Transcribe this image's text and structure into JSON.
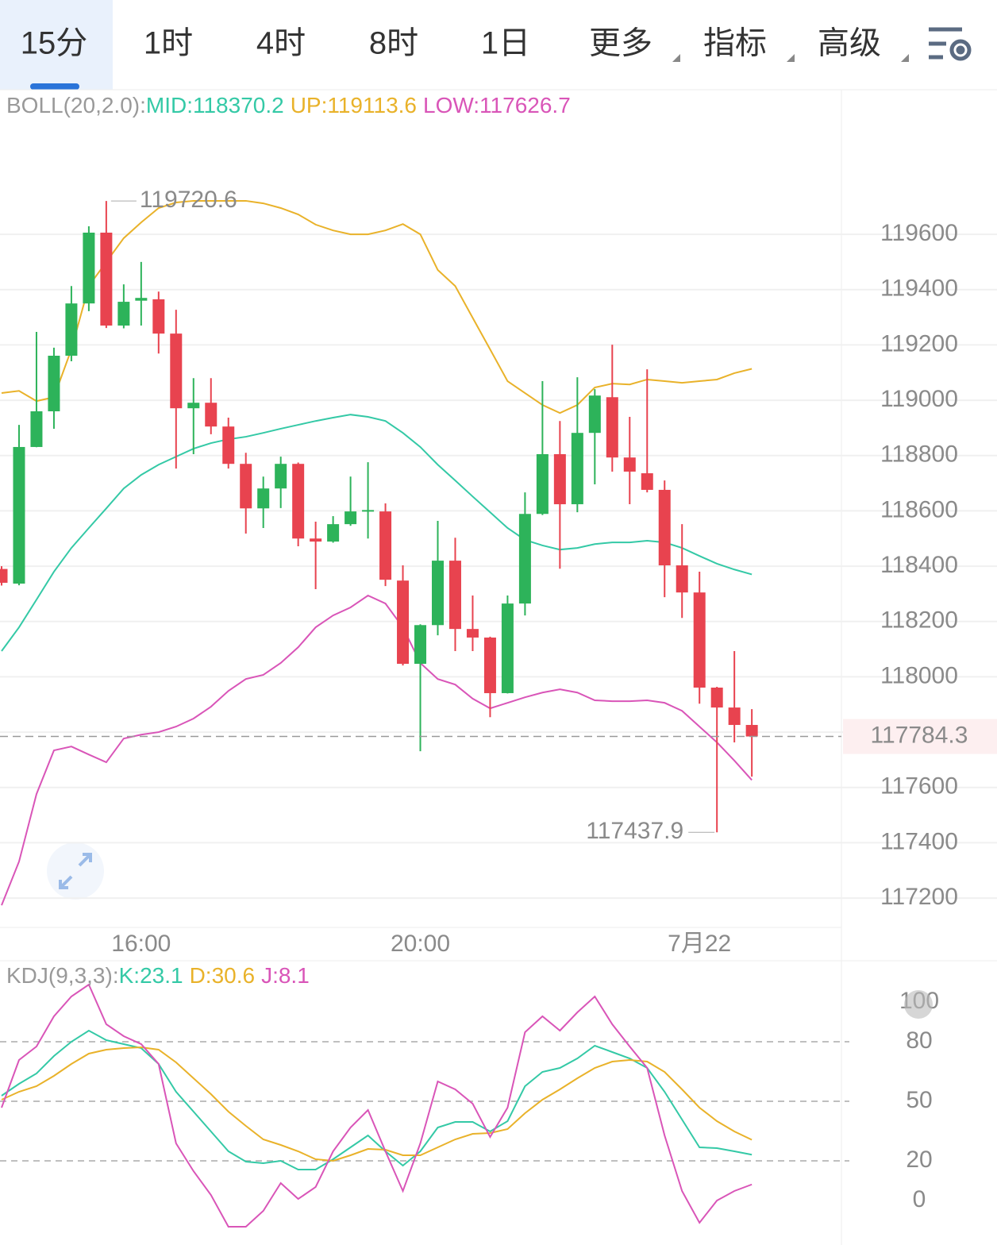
{
  "tabs": [
    {
      "label": "15分",
      "active": true
    },
    {
      "label": "1时"
    },
    {
      "label": "4时"
    },
    {
      "label": "8时"
    },
    {
      "label": "1日"
    },
    {
      "label": "更多",
      "dropdown": true
    },
    {
      "label": "指标",
      "dropdown": true
    },
    {
      "label": "高级",
      "dropdown": true
    }
  ],
  "chart_data": [
    {
      "type": "candlestick",
      "indicator": "BOLL(20,2.0):",
      "categories": [
        null,
        null,
        null,
        null,
        null,
        null,
        null,
        null,
        "16:00",
        null,
        null,
        null,
        null,
        null,
        null,
        null,
        null,
        null,
        null,
        null,
        null,
        null,
        null,
        null,
        "20:00",
        null,
        null,
        null,
        null,
        null,
        null,
        null,
        null,
        null,
        null,
        null,
        null,
        null,
        null,
        null,
        "7月22",
        null,
        null,
        null
      ],
      "open": [
        118390,
        118337,
        118831,
        118960,
        119161,
        119350,
        119606,
        119270,
        119360,
        119365,
        119241,
        118971,
        118991,
        118905,
        118770,
        118609,
        118681,
        118770,
        118500,
        118489,
        118552,
        118598,
        118598,
        118348,
        118047,
        118187,
        118420,
        118173,
        118142,
        117941,
        118265,
        118589,
        118805,
        118624,
        118882,
        119011,
        118793,
        118736,
        118676,
        118403,
        118305,
        117961,
        117889,
        117826
      ],
      "high": [
        118400,
        118911,
        119247,
        119190,
        119413,
        119629,
        119720.6,
        119419,
        119500,
        119393,
        119327,
        119080,
        119080,
        118937,
        118810,
        118724,
        118796,
        118775,
        118561,
        118581,
        118724,
        118776,
        118627,
        118403,
        118190,
        118564,
        118503,
        118294,
        118145,
        118294,
        118667,
        119069,
        118925,
        119083,
        119040,
        119201,
        118940,
        119112,
        118710,
        118552,
        118380,
        117964,
        118093,
        117883
      ],
      "low": [
        118330,
        118331,
        118830,
        118897,
        119141,
        119322,
        119261,
        119260,
        119270,
        119169,
        118753,
        118805,
        118877,
        118753,
        118518,
        118538,
        118610,
        118472,
        118317,
        118485,
        118546,
        118500,
        118328,
        118041,
        117731,
        118150,
        118093,
        118093,
        117854,
        117940,
        118222,
        118585,
        118391,
        118595,
        118696,
        118742,
        118624,
        118667,
        118288,
        118213,
        117903,
        117437.9,
        117763,
        117639
      ],
      "close": [
        118340,
        118831,
        118960,
        119161,
        119350,
        119606,
        119270,
        119356,
        119370,
        119241,
        118971,
        118991,
        118905,
        118770,
        118609,
        118681,
        118770,
        118500,
        118489,
        118552,
        118598,
        118603,
        118351,
        118047,
        118187,
        118420,
        118173,
        118142,
        117941,
        118265,
        118589,
        118805,
        118624,
        118882,
        119017,
        118793,
        118742,
        118676,
        118403,
        118305,
        117961,
        117889,
        117826,
        117784.3
      ],
      "up_color": "#2db35a",
      "down_color": "#e8434f",
      "series": [
        {
          "name": "MID:118370.2",
          "color": "#34c9a6",
          "values": [
            118093,
            118179,
            118279,
            118380,
            118466,
            118538,
            118609,
            118681,
            118730,
            118767,
            118796,
            118825,
            118845,
            118859,
            118868,
            118882,
            118897,
            118911,
            118925,
            118937,
            118948,
            118940,
            118925,
            118882,
            118831,
            118767,
            118710,
            118652,
            118595,
            118538,
            118495,
            118475,
            118460,
            118466,
            118480,
            118486,
            118486,
            118492,
            118486,
            118466,
            118437,
            118409,
            118388,
            118370.2
          ]
        },
        {
          "name": "UP:119113.6",
          "color": "#e9b22a",
          "values": [
            119026,
            119034,
            118997,
            119011,
            119184,
            119413,
            119500,
            119586,
            119643,
            119695,
            119715,
            119721,
            119721,
            119721,
            119721,
            119712,
            119695,
            119672,
            119635,
            119614,
            119600,
            119600,
            119614,
            119637,
            119600,
            119471,
            119413,
            119298,
            119184,
            119069,
            119026,
            118983,
            118954,
            118983,
            119046,
            119060,
            119057,
            119075,
            119069,
            119063,
            119069,
            119075,
            119098,
            119113.6
          ]
        },
        {
          "name": "LOW:117626.7",
          "color": "#d955b8",
          "values": [
            117174,
            117332,
            117576,
            117734,
            117748,
            117719,
            117691,
            117777,
            117791,
            117800,
            117820,
            117849,
            117892,
            117949,
            117992,
            118007,
            118050,
            118107,
            118179,
            118222,
            118251,
            118294,
            118265,
            118179,
            118050,
            117992,
            117972,
            117921,
            117886,
            117906,
            117926,
            117943,
            117955,
            117943,
            117915,
            117912,
            117912,
            117915,
            117906,
            117877,
            117820,
            117763,
            117697,
            117626.7
          ]
        }
      ],
      "ylim": [
        117094,
        120117
      ],
      "yticks": [
        117200,
        117400,
        117600,
        117800,
        118000,
        118200,
        118400,
        118600,
        118800,
        119000,
        119200,
        119400,
        119600
      ],
      "grid": true,
      "annotations": [
        {
          "label": "119720.6",
          "value": 119720.6,
          "x": 6
        },
        {
          "label": "117437.9",
          "value": 117437.9,
          "x": 41
        }
      ],
      "last_price": {
        "value": 117784.3,
        "label": "117784.3"
      }
    },
    {
      "type": "line",
      "indicator": "KDJ(9,3,3):",
      "series": [
        {
          "name": "K:23.1",
          "color": "#34c9a6",
          "values": [
            52.8,
            58.8,
            64,
            72.8,
            80,
            85.6,
            80.8,
            78.8,
            76.8,
            68.8,
            54.8,
            44.8,
            34.8,
            24.8,
            19.6,
            18.8,
            20,
            15.6,
            15.6,
            20.8,
            26.8,
            32.8,
            24.8,
            17.6,
            24.8,
            36.8,
            39.6,
            39.6,
            34.8,
            40,
            57.6,
            64.8,
            66.8,
            71.6,
            78,
            74.8,
            71.6,
            66.8,
            54.8,
            40.8,
            26.8,
            26.4,
            24.8,
            23.1
          ]
        },
        {
          "name": "D:30.6",
          "color": "#e9b22a",
          "values": [
            50.8,
            54.8,
            57.6,
            62.8,
            68.8,
            74,
            76,
            76.8,
            77.2,
            76,
            69.6,
            61.6,
            53.6,
            44.8,
            37.6,
            30.8,
            28,
            24.8,
            20.8,
            20,
            22.8,
            26,
            25.6,
            22.8,
            22.8,
            26.8,
            30.8,
            33.6,
            34,
            36,
            44,
            50.8,
            56,
            61.6,
            66.8,
            70,
            70.8,
            70,
            64.8,
            56,
            46.8,
            40,
            34.8,
            30.6
          ]
        },
        {
          "name": "J:8.1",
          "color": "#d955b8",
          "values": [
            46.8,
            70.8,
            77.6,
            92.8,
            102.8,
            108.8,
            88.8,
            82.8,
            78.8,
            68.8,
            28.8,
            14.8,
            2.8,
            -13.2,
            -13.2,
            -5.2,
            8.8,
            0.8,
            6.8,
            24.8,
            36.8,
            45.6,
            24.8,
            4.8,
            28.8,
            60,
            56,
            48.8,
            32,
            46.8,
            84.8,
            92.8,
            85.6,
            94.8,
            102.8,
            88.8,
            77.6,
            66.8,
            32.8,
            4.8,
            -11.2,
            0,
            4.8,
            8.1
          ]
        }
      ],
      "ylim": [
        -22.4,
        118.8
      ],
      "yticks": [
        100,
        80,
        50,
        20,
        0
      ],
      "grid": true
    }
  ]
}
